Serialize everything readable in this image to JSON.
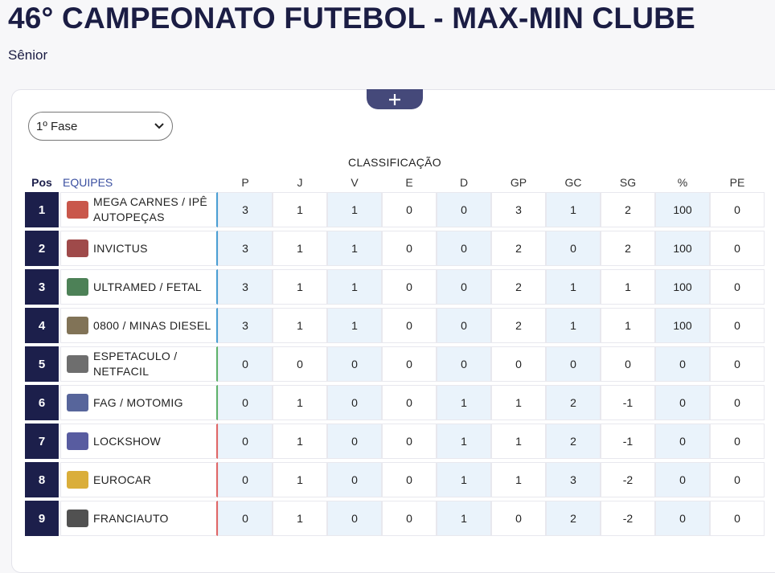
{
  "header": {
    "title": "46° CAMPEONATO FUTEBOL - MAX-MIN CLUBE",
    "subtitle": "Sênior"
  },
  "phase_select": "1º Fase",
  "table": {
    "caption": "CLASSIFICAÇÃO",
    "columns": [
      "Pos",
      "EQUIPES",
      "P",
      "J",
      "V",
      "E",
      "D",
      "GP",
      "GC",
      "SG",
      "%",
      "PE"
    ],
    "rows": [
      [
        1,
        "MEGA CARNES / IPÊ AUTOPEÇAS",
        3,
        1,
        1,
        0,
        0,
        3,
        1,
        2,
        100,
        0
      ],
      [
        2,
        "INVICTUS",
        3,
        1,
        1,
        0,
        0,
        2,
        0,
        2,
        100,
        0
      ],
      [
        3,
        "ULTRAMED / FETAL",
        3,
        1,
        1,
        0,
        0,
        2,
        1,
        1,
        100,
        0
      ],
      [
        4,
        "0800 / MINAS DIESEL",
        3,
        1,
        1,
        0,
        0,
        2,
        1,
        1,
        100,
        0
      ],
      [
        5,
        "ESPETACULO / NETFACIL",
        0,
        0,
        0,
        0,
        0,
        0,
        0,
        0,
        0,
        0
      ],
      [
        6,
        "FAG / MOTOMIG",
        0,
        1,
        0,
        0,
        1,
        1,
        2,
        -1,
        0,
        0
      ],
      [
        7,
        "LOCKSHOW",
        0,
        1,
        0,
        0,
        1,
        1,
        2,
        -1,
        0,
        0
      ],
      [
        8,
        "EUROCAR",
        0,
        1,
        0,
        0,
        1,
        1,
        3,
        -2,
        0,
        0
      ],
      [
        9,
        "FRANCIAUTO",
        0,
        1,
        0,
        0,
        1,
        0,
        2,
        -2,
        0,
        0
      ]
    ]
  }
}
